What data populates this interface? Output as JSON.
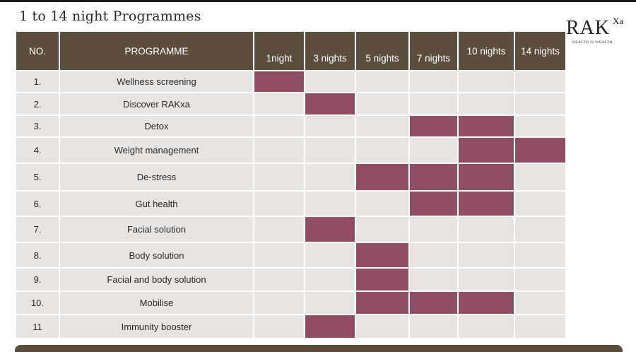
{
  "title": "1 to 14 night Programmes",
  "logo": {
    "main": "RAK",
    "sup": "Xa",
    "tagline": "HEALTH IS WEALTH"
  },
  "headers": {
    "no": "NO.",
    "programme": "PROGRAMME",
    "nights": [
      "1night",
      "3 nights",
      "5 nights",
      "7 nights",
      "10 nights",
      "14 nights"
    ]
  },
  "colors": {
    "header": "#5b4e3d",
    "cell": "#e7e4e2",
    "filled": "#8f4e63"
  },
  "rows": [
    {
      "no": "1.",
      "name": "Wellness screening",
      "filled": [
        true,
        false,
        false,
        false,
        false,
        false
      ]
    },
    {
      "no": "2.",
      "name": "Discover RAKxa",
      "filled": [
        false,
        true,
        false,
        false,
        false,
        false
      ]
    },
    {
      "no": "3.",
      "name": "Detox",
      "filled": [
        false,
        false,
        false,
        true,
        true,
        false
      ]
    },
    {
      "no": "4.",
      "name": "Weight management",
      "filled": [
        false,
        false,
        false,
        false,
        true,
        true
      ]
    },
    {
      "no": "5.",
      "name": "De-stress",
      "filled": [
        false,
        false,
        true,
        true,
        true,
        false
      ]
    },
    {
      "no": "6.",
      "name": "Gut health",
      "filled": [
        false,
        false,
        false,
        true,
        true,
        false
      ]
    },
    {
      "no": "7.",
      "name": "Facial solution",
      "filled": [
        false,
        true,
        false,
        false,
        false,
        false
      ]
    },
    {
      "no": "8.",
      "name": "Body solution",
      "filled": [
        false,
        false,
        true,
        false,
        false,
        false
      ]
    },
    {
      "no": "9.",
      "name": "Facial and body solution",
      "filled": [
        false,
        false,
        true,
        false,
        false,
        false
      ]
    },
    {
      "no": "10.",
      "name": "Mobilise",
      "filled": [
        false,
        false,
        true,
        true,
        true,
        false
      ]
    },
    {
      "no": "11",
      "name": "Immunity booster",
      "filled": [
        false,
        true,
        false,
        false,
        false,
        false
      ]
    }
  ]
}
